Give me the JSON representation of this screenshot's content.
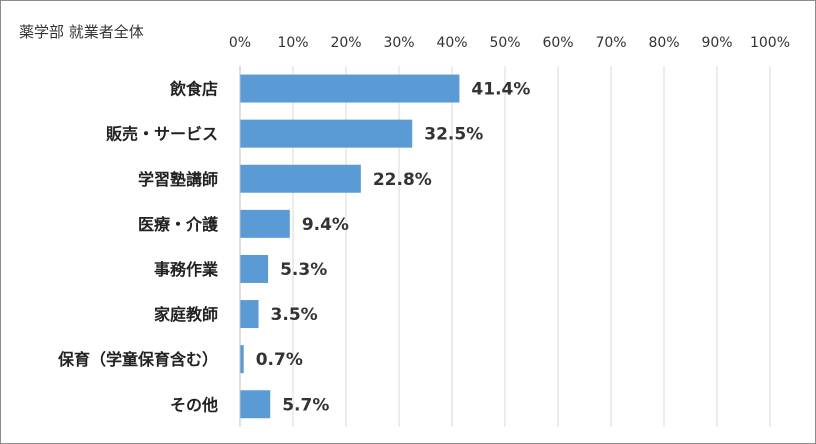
{
  "chart_data": {
    "type": "bar",
    "orientation": "horizontal",
    "title": "薬学部 就業者全体",
    "categories": [
      "飲食店",
      "販売・サービス",
      "学習塾講師",
      "医療・介護",
      "事務作業",
      "家庭教師",
      "保育（学童保育含む）",
      "その他"
    ],
    "values": [
      41.4,
      32.5,
      22.8,
      9.4,
      5.3,
      3.5,
      0.7,
      5.7
    ],
    "value_labels": [
      "41.4%",
      "32.5%",
      "22.8%",
      "9.4%",
      "5.3%",
      "3.5%",
      "0.7%",
      "5.7%"
    ],
    "xlim": [
      0,
      100
    ],
    "x_ticks": [
      "0%",
      "10%",
      "20%",
      "30%",
      "40%",
      "50%",
      "60%",
      "70%",
      "80%",
      "90%",
      "100%"
    ],
    "x_axis_position": "top",
    "grid": true,
    "legend": "none",
    "bar_color": "#5b9bd5",
    "grid_color": "#d9d9d9"
  }
}
